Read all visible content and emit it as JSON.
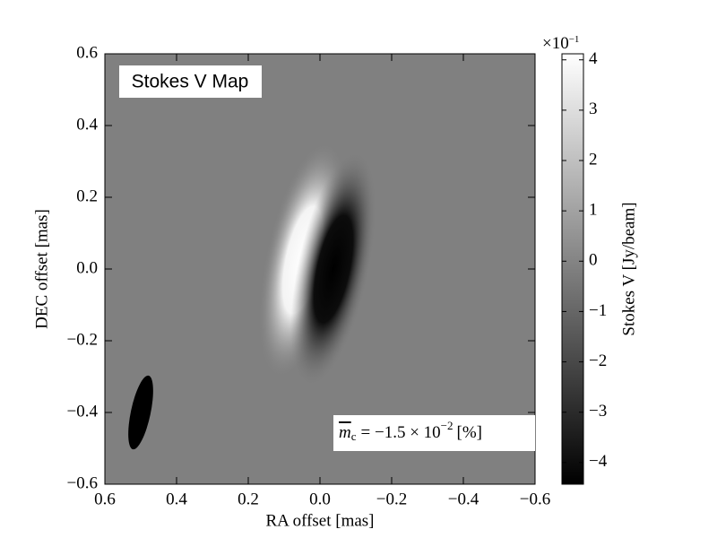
{
  "chart_data": {
    "type": "image",
    "title": "Stokes V Map",
    "xlabel": "RA offset [mas]",
    "ylabel": "DEC offset [mas]",
    "xlim": [
      0.6,
      -0.6
    ],
    "ylim": [
      -0.6,
      0.6
    ],
    "xticks": [
      0.6,
      0.4,
      0.2,
      {
        "value": 0,
        "label": "0.0"
      },
      {
        "value": -0.2,
        "label": "−0.2"
      },
      {
        "value": -0.4,
        "label": "−0.4"
      },
      {
        "value": -0.6,
        "label": "−0.6"
      }
    ],
    "yticks": [
      {
        "value": -0.6,
        "label": "−0.6"
      },
      {
        "value": -0.4,
        "label": "−0.4"
      },
      {
        "value": -0.2,
        "label": "−0.2"
      },
      {
        "value": 0,
        "label": "0.0"
      },
      0.2,
      0.4,
      0.6
    ],
    "colorbar": {
      "label": "Stokes V [Jy/beam]",
      "lim": [
        -4.43,
        4.12
      ],
      "ticks": [
        {
          "value": -4,
          "label": "−4"
        },
        {
          "value": -3,
          "label": "−3"
        },
        {
          "value": -2,
          "label": "−2"
        },
        {
          "value": -1,
          "label": "−1"
        },
        0,
        1,
        2,
        3,
        4
      ],
      "multiplier": "×10",
      "multiplier_exponent": "−1"
    },
    "annotation": {
      "symbol": "m",
      "subscript": "c",
      "text": "=  −1.5 × 10",
      "exponent": "−2",
      "unit": "[%]"
    }
  }
}
